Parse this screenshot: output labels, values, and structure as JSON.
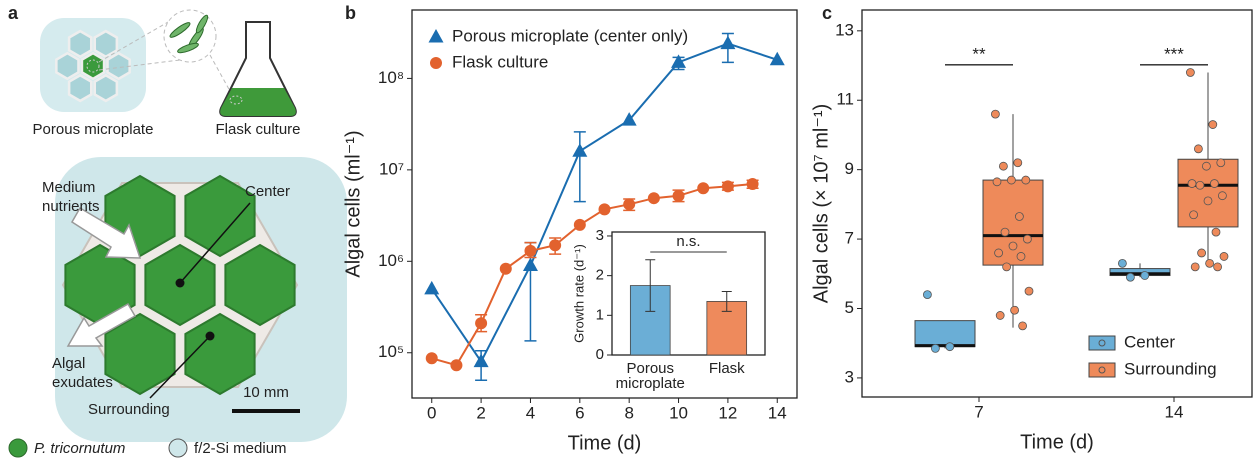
{
  "panel_labels": [
    "a",
    "b",
    "c"
  ],
  "diagram": {
    "plate_label": "Porous microplate",
    "flask_label": "Flask culture",
    "inflow_label": [
      "Medium",
      "nutrients"
    ],
    "center_label": "Center",
    "outflow_label": [
      "Algal",
      "exudates"
    ],
    "surrounding_label": "Surrounding",
    "scale_bar": "10 mm",
    "legend": [
      "P. tricornutum",
      "f/2-Si medium"
    ]
  },
  "chart_data": [
    {
      "type": "line",
      "x_label": "Time (d)",
      "y_label": "Algal cells (ml⁻¹)",
      "log_y": true,
      "xlim": [
        -0.8,
        14.8
      ],
      "xticks": [
        0,
        2,
        4,
        6,
        8,
        10,
        12,
        14
      ],
      "ylim": [
        32000,
        560000000
      ],
      "yticks": [
        {
          "value": 100000,
          "label": "10⁵"
        },
        {
          "value": 1000000,
          "label": "10⁶"
        },
        {
          "value": 10000000,
          "label": "10⁷"
        },
        {
          "value": 100000000,
          "label": "10⁸"
        }
      ],
      "legend": "upper left",
      "series": [
        {
          "name": "Porous microplate (center only)",
          "color": "#1a6db0",
          "marker": "triangle",
          "x": [
            0,
            2,
            4,
            6,
            8,
            10,
            12,
            14
          ],
          "values": [
            500000,
            80000,
            900000,
            16000000,
            35000000,
            150000000,
            240000000,
            160000000
          ],
          "err_low": [
            null,
            50000,
            135000,
            4500000,
            null,
            125000000,
            150000000,
            null
          ],
          "err_high": [
            null,
            105000,
            1600000,
            26000000,
            null,
            170000000,
            310000000,
            null
          ]
        },
        {
          "name": "Flask culture",
          "color": "#e2622e",
          "marker": "circle",
          "x": [
            0,
            1,
            2,
            3,
            4,
            5,
            6,
            7,
            8,
            9,
            10,
            11,
            12,
            13
          ],
          "values": [
            87000,
            73000,
            210000,
            830000,
            1300000,
            1500000,
            2500000,
            3700000,
            4200000,
            4900000,
            5200000,
            6300000,
            6600000,
            7000000
          ],
          "err_low": [
            null,
            null,
            170000,
            null,
            1100000,
            1200000,
            null,
            null,
            3600000,
            null,
            4500000,
            null,
            6000000,
            6300000
          ],
          "err_high": [
            null,
            null,
            260000,
            null,
            1600000,
            1800000,
            null,
            null,
            4800000,
            null,
            6000000,
            null,
            7300000,
            7700000
          ]
        }
      ]
    },
    {
      "type": "bar",
      "y_label": "Growth rate (d⁻¹)",
      "categories": [
        [
          "Porous",
          "microplate"
        ],
        [
          "Flask"
        ]
      ],
      "values": [
        1.75,
        1.35
      ],
      "errors": [
        0.65,
        0.25
      ],
      "colors": [
        "#6baed6",
        "#ee8a5c"
      ],
      "ylim": [
        0,
        3.1
      ],
      "yticks": [
        0,
        1,
        2,
        3
      ],
      "annotation": "n.s."
    },
    {
      "type": "box",
      "x_label": "Time (d)",
      "y_label": "Algal cells (× 10⁷ ml⁻¹)",
      "categories": [
        "7",
        "14"
      ],
      "ylim": [
        2.45,
        13.6
      ],
      "yticks": [
        3,
        5,
        7,
        9,
        11,
        13
      ],
      "annotations": [
        "**",
        "***"
      ],
      "legend": "lower right",
      "series": [
        {
          "name": "Center",
          "color": "#6aaed6",
          "boxes": [
            {
              "whislo": 3.85,
              "q1": 3.9,
              "median": 3.93,
              "q3": 4.65,
              "whishi": 4.65,
              "points": [
                5.4,
                3.9,
                3.85
              ]
            },
            {
              "whislo": 5.9,
              "q1": 5.95,
              "median": 6.0,
              "q3": 6.15,
              "whishi": 6.3,
              "points": [
                6.3,
                5.95,
                5.9
              ]
            }
          ]
        },
        {
          "name": "Surrounding",
          "color": "#ee8a5a",
          "boxes": [
            {
              "whislo": 4.45,
              "q1": 6.25,
              "median": 7.1,
              "q3": 8.7,
              "whishi": 10.6,
              "points": [
                10.6,
                9.2,
                9.1,
                8.7,
                8.7,
                8.65,
                7.65,
                7.2,
                7.0,
                6.8,
                6.6,
                6.5,
                6.2,
                5.5,
                4.95,
                4.8,
                4.5
              ]
            },
            {
              "whislo": 6.2,
              "q1": 7.35,
              "median": 8.55,
              "q3": 9.3,
              "whishi": 11.8,
              "points": [
                11.8,
                10.3,
                9.6,
                9.2,
                9.1,
                8.6,
                8.6,
                8.55,
                8.25,
                8.1,
                7.7,
                7.2,
                6.6,
                6.5,
                6.3,
                6.2,
                6.2
              ]
            }
          ]
        }
      ]
    }
  ]
}
